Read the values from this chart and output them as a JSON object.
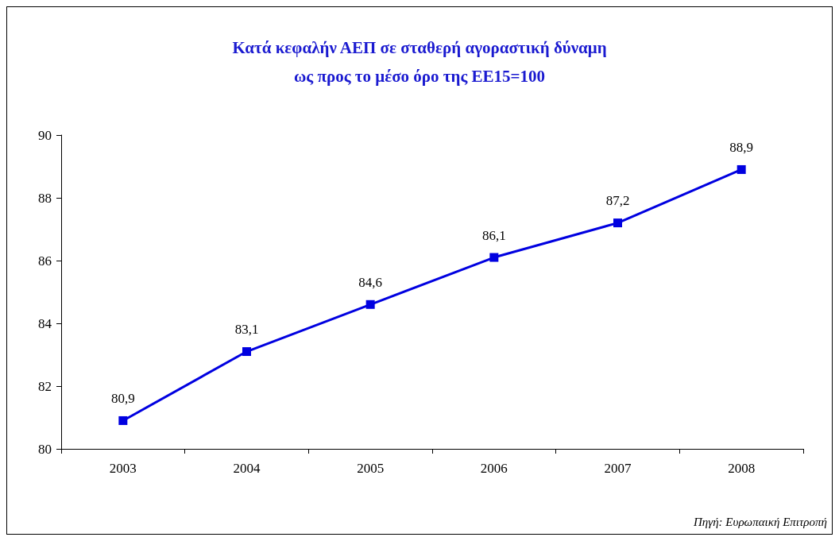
{
  "chart_data": {
    "type": "line",
    "title": "Κατά κεφαλήν ΑΕΠ σε σταθερή αγοραστική δύναμη\nως προς το μέσο όρο της ΕΕ15=100",
    "categories": [
      "2003",
      "2004",
      "2005",
      "2006",
      "2007",
      "2008"
    ],
    "series": [
      {
        "color": "#0000e0",
        "values": [
          80.9,
          83.1,
          84.6,
          86.1,
          87.2,
          88.9
        ],
        "value_labels": [
          "80,9",
          "83,1",
          "84,6",
          "86,1",
          "87,2",
          "88,9"
        ]
      }
    ],
    "ylim": [
      80,
      90
    ],
    "yticks": [
      80,
      82,
      84,
      86,
      88,
      90
    ],
    "grid": false,
    "marker": "square",
    "line_style": "solid",
    "annotations": [
      "Πηγή: Ευρωπαική Επιτροπή"
    ]
  }
}
